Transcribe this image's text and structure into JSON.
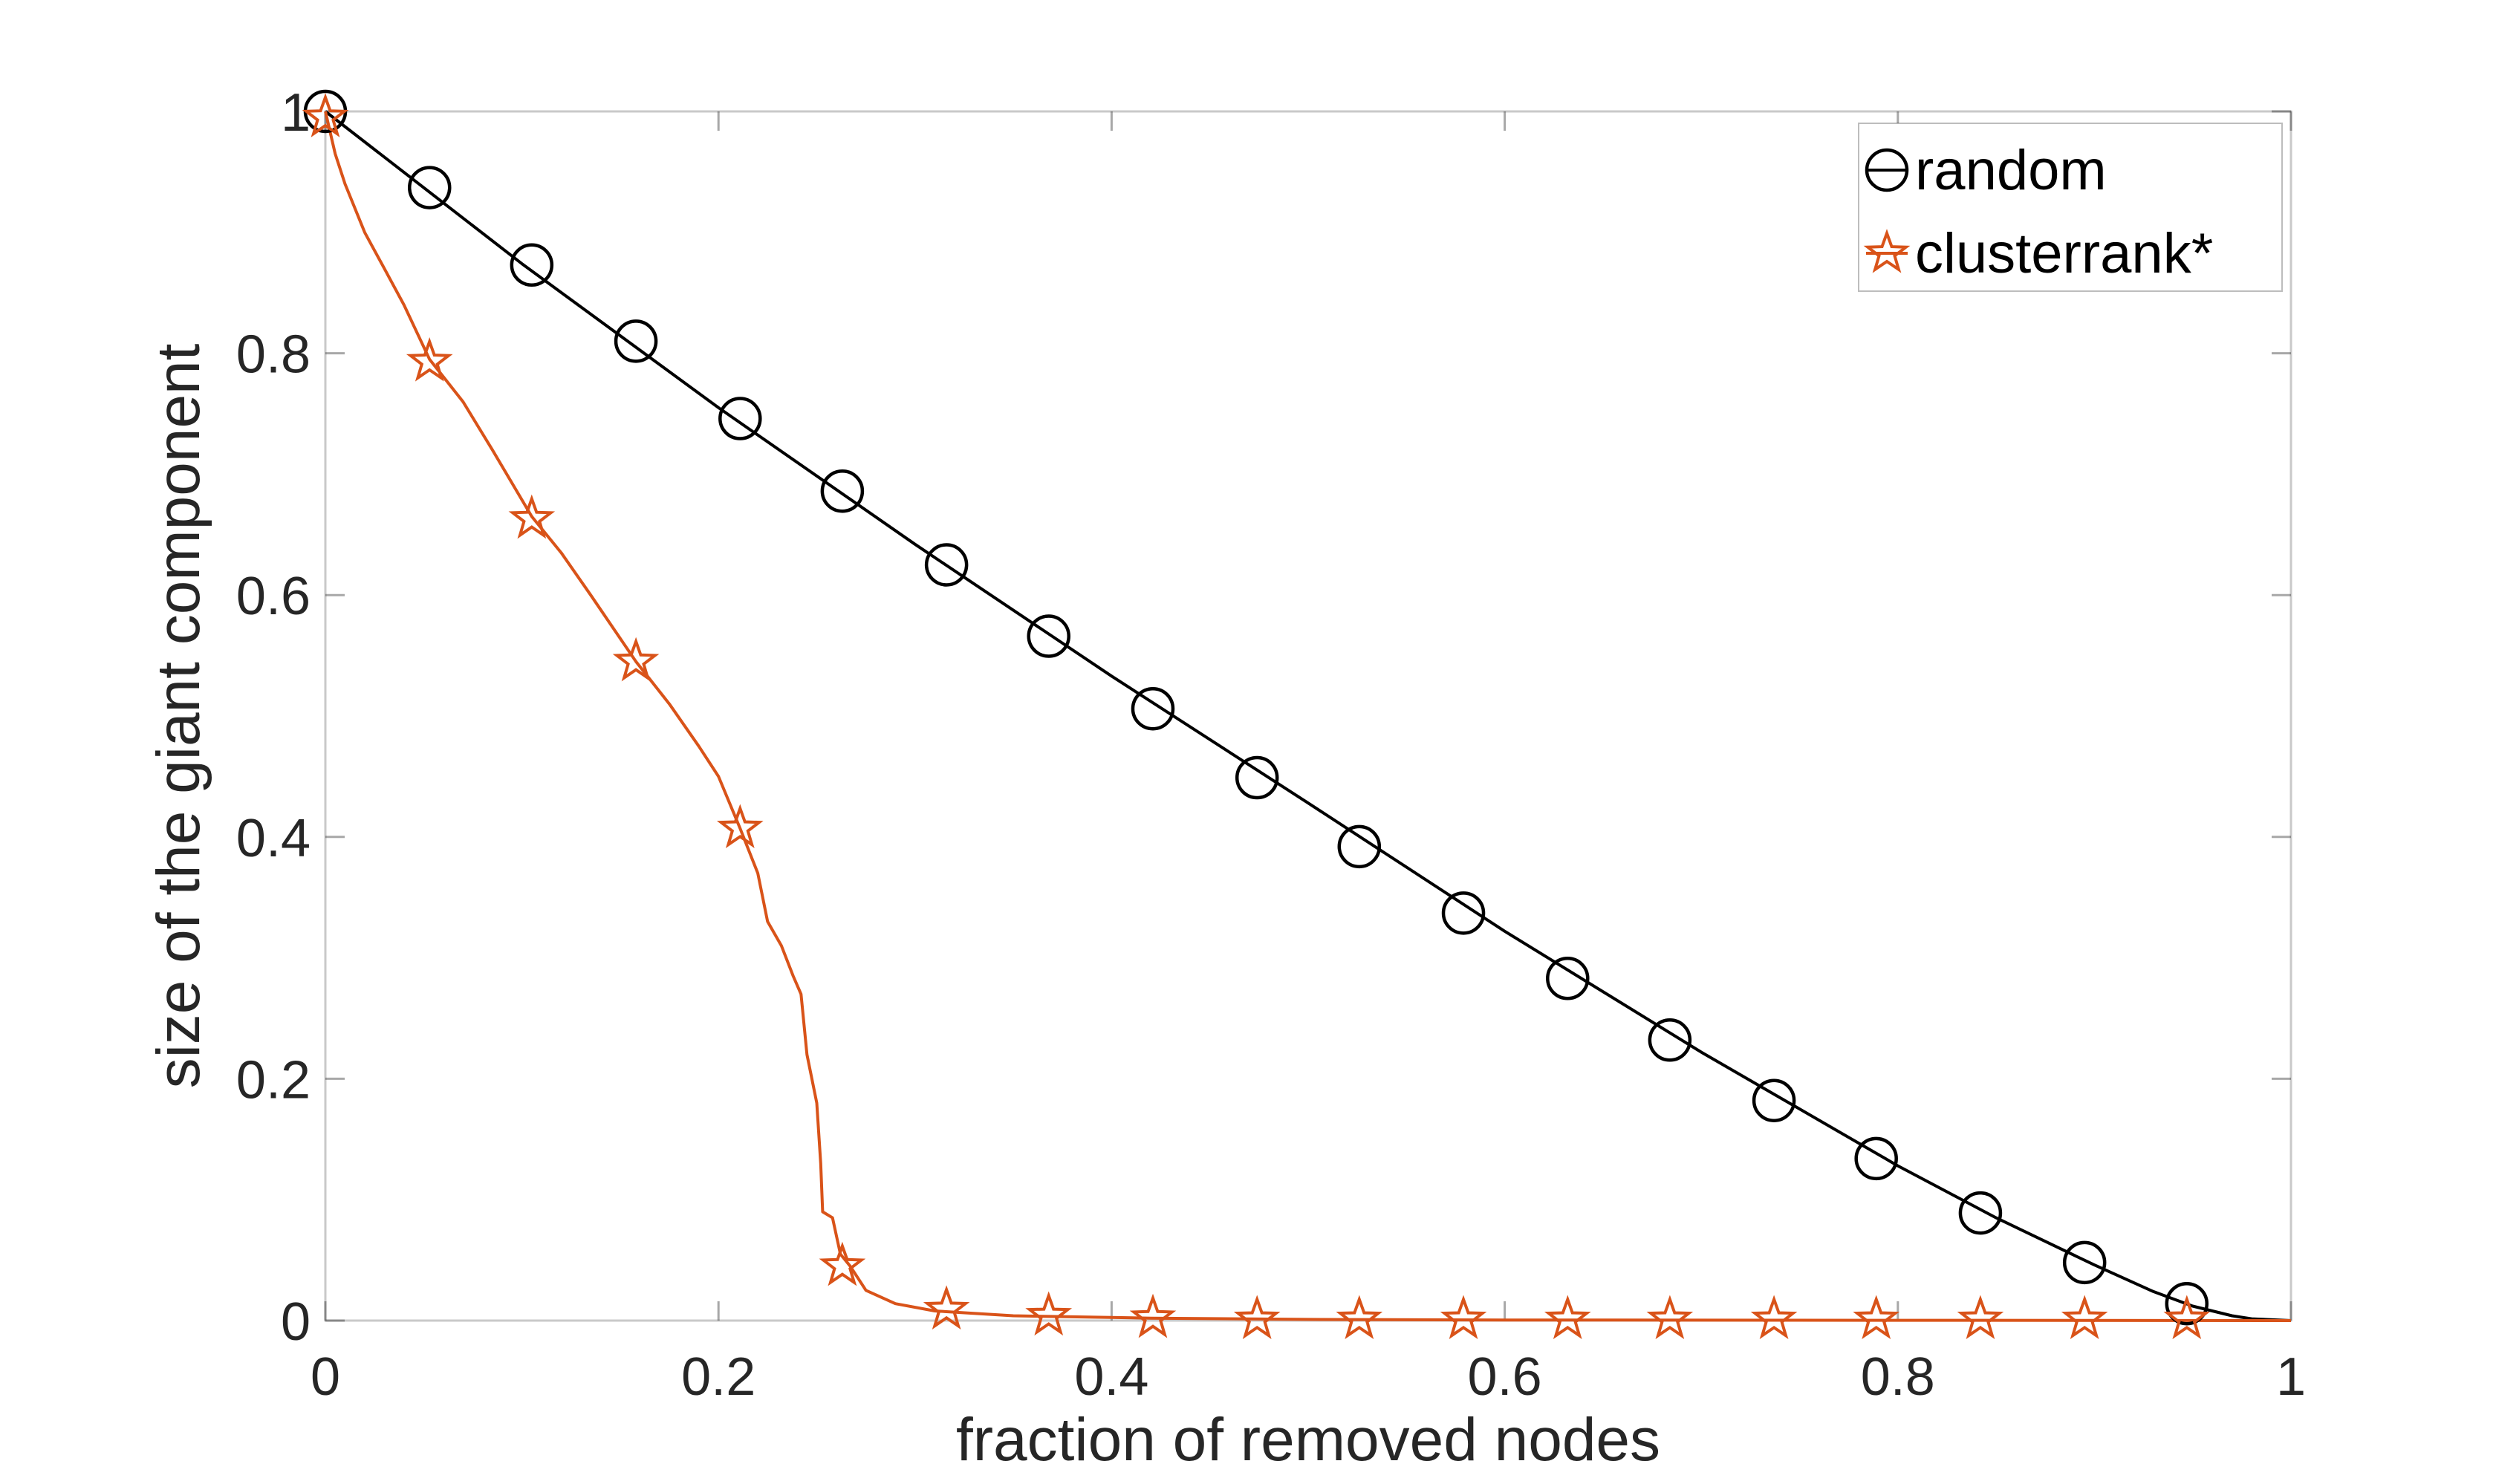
{
  "chart_data": {
    "type": "line",
    "title": "",
    "xlabel": "fraction of removed nodes",
    "ylabel": "size of the giant component",
    "xlim": [
      0,
      1
    ],
    "ylim": [
      0,
      1
    ],
    "x_ticks": [
      0,
      0.2,
      0.4,
      0.6,
      0.8,
      1
    ],
    "x_tick_labels": [
      "0",
      "0.2",
      "0.4",
      "0.6",
      "0.8",
      "1"
    ],
    "y_ticks": [
      0,
      0.2,
      0.4,
      0.6,
      0.8,
      1
    ],
    "y_tick_labels": [
      "0",
      "0.2",
      "0.4",
      "0.6",
      "0.8",
      "1"
    ],
    "grid": false,
    "legend_position": "top-right",
    "series": [
      {
        "name": "random",
        "color": "#000000",
        "marker": "circle",
        "line": [
          [
            0,
            1.0
          ],
          [
            0.1,
            0.874
          ],
          [
            0.2,
            0.755
          ],
          [
            0.3,
            0.642
          ],
          [
            0.4,
            0.533
          ],
          [
            0.5,
            0.428
          ],
          [
            0.6,
            0.322
          ],
          [
            0.7,
            0.222
          ],
          [
            0.8,
            0.128
          ],
          [
            0.85,
            0.085
          ],
          [
            0.9,
            0.046
          ],
          [
            0.93,
            0.024
          ],
          [
            0.95,
            0.012
          ],
          [
            0.97,
            0.004
          ],
          [
            0.98,
            0.0015
          ],
          [
            1.0,
            0.0
          ]
        ],
        "markers": [
          [
            0,
            1.0
          ],
          [
            0.053,
            0.937
          ],
          [
            0.105,
            0.873
          ],
          [
            0.158,
            0.81
          ],
          [
            0.211,
            0.746
          ],
          [
            0.263,
            0.686
          ],
          [
            0.316,
            0.625
          ],
          [
            0.368,
            0.566
          ],
          [
            0.421,
            0.506
          ],
          [
            0.474,
            0.449
          ],
          [
            0.526,
            0.392
          ],
          [
            0.579,
            0.337
          ],
          [
            0.632,
            0.283
          ],
          [
            0.684,
            0.232
          ],
          [
            0.737,
            0.182
          ],
          [
            0.789,
            0.134
          ],
          [
            0.842,
            0.089
          ],
          [
            0.895,
            0.048
          ],
          [
            0.947,
            0.014
          ]
        ]
      },
      {
        "name": "clusterrank*",
        "color": "#d95319",
        "marker": "star",
        "line": [
          [
            0,
            1.0
          ],
          [
            0.005,
            0.965
          ],
          [
            0.01,
            0.94
          ],
          [
            0.02,
            0.9
          ],
          [
            0.03,
            0.87
          ],
          [
            0.04,
            0.84
          ],
          [
            0.053,
            0.795
          ],
          [
            0.07,
            0.76
          ],
          [
            0.085,
            0.72
          ],
          [
            0.105,
            0.665
          ],
          [
            0.12,
            0.635
          ],
          [
            0.135,
            0.6
          ],
          [
            0.158,
            0.545
          ],
          [
            0.175,
            0.51
          ],
          [
            0.19,
            0.475
          ],
          [
            0.2,
            0.45
          ],
          [
            0.211,
            0.407
          ],
          [
            0.22,
            0.37
          ],
          [
            0.225,
            0.33
          ],
          [
            0.232,
            0.31
          ],
          [
            0.238,
            0.285
          ],
          [
            0.242,
            0.27
          ],
          [
            0.245,
            0.22
          ],
          [
            0.25,
            0.18
          ],
          [
            0.252,
            0.13
          ],
          [
            0.253,
            0.09
          ],
          [
            0.258,
            0.085
          ],
          [
            0.262,
            0.055
          ],
          [
            0.267,
            0.045
          ],
          [
            0.275,
            0.025
          ],
          [
            0.29,
            0.014
          ],
          [
            0.31,
            0.008
          ],
          [
            0.35,
            0.004
          ],
          [
            0.42,
            0.002
          ],
          [
            0.5,
            0.001
          ],
          [
            0.6,
            0.0005
          ],
          [
            1.0,
            0.0
          ]
        ],
        "markers": [
          [
            0,
            0.995
          ],
          [
            0.053,
            0.793
          ],
          [
            0.105,
            0.663
          ],
          [
            0.158,
            0.545
          ],
          [
            0.211,
            0.407
          ],
          [
            0.263,
            0.045
          ],
          [
            0.316,
            0.009
          ],
          [
            0.368,
            0.004
          ],
          [
            0.421,
            0.002
          ],
          [
            0.474,
            0.001
          ],
          [
            0.526,
            0.001
          ],
          [
            0.579,
            0.001
          ],
          [
            0.632,
            0.001
          ],
          [
            0.684,
            0.001
          ],
          [
            0.737,
            0.001
          ],
          [
            0.789,
            0.001
          ],
          [
            0.842,
            0.001
          ],
          [
            0.895,
            0.001
          ],
          [
            0.947,
            0.001
          ]
        ]
      }
    ]
  }
}
